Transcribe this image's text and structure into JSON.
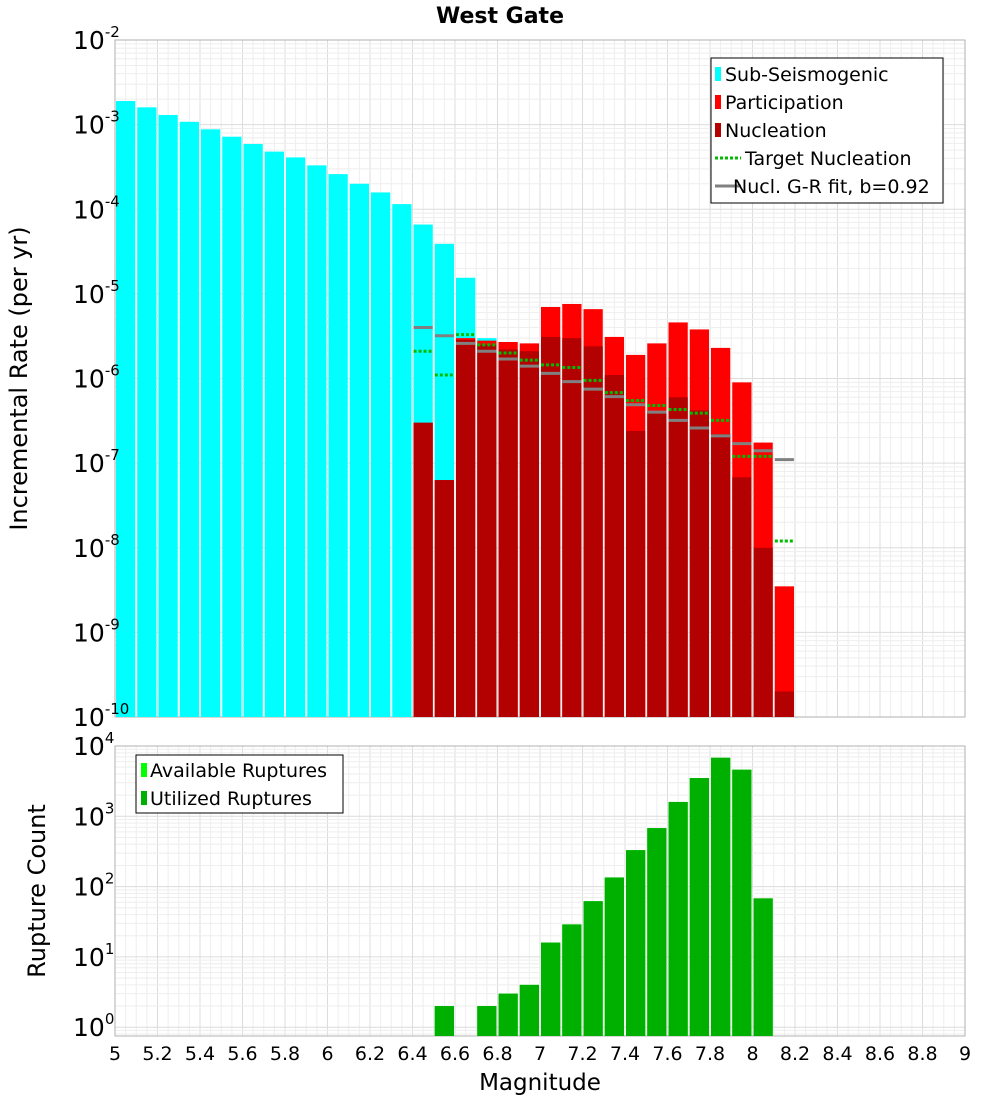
{
  "chart_data": [
    {
      "type": "bar",
      "title": "West Gate",
      "ylabel": "Incremental Rate (per yr)",
      "xlim": [
        5,
        9
      ],
      "ylim": [
        1e-10,
        0.01
      ],
      "yscale": "log",
      "grid": true,
      "legend_position": "top-right",
      "legend": [
        {
          "label": "Sub-Seismogenic",
          "color": "#00ffff",
          "style": "bar"
        },
        {
          "label": "Participation",
          "color": "#ff0000",
          "style": "bar"
        },
        {
          "label": "Nucleation",
          "color": "#b30000",
          "style": "bar"
        },
        {
          "label": "Target Nucleation",
          "color": "#00bb00",
          "style": "dotted-line"
        },
        {
          "label": "Nucl. G-R fit, b=0.92",
          "color": "#808080",
          "style": "line"
        }
      ],
      "bar_width": 0.1,
      "series": [
        {
          "name": "Sub-Seismogenic",
          "color": "#00ffff",
          "x": [
            5.05,
            5.15,
            5.25,
            5.35,
            5.45,
            5.55,
            5.65,
            5.75,
            5.85,
            5.95,
            6.05,
            6.15,
            6.25,
            6.35,
            6.45,
            6.55,
            6.65,
            6.75
          ],
          "values": [
            0.0019,
            0.0016,
            0.0013,
            0.00108,
            0.00088,
            0.00072,
            0.00059,
            0.00048,
            0.00041,
            0.00033,
            0.00026,
            0.0002,
            0.000158,
            0.000115,
            6.6e-05,
            3.9e-05,
            1.55e-05,
            3e-06
          ]
        },
        {
          "name": "Participation",
          "color": "#ff0000",
          "x": [
            6.45,
            6.55,
            6.65,
            6.75,
            6.85,
            6.95,
            7.05,
            7.15,
            7.25,
            7.35,
            7.45,
            7.55,
            7.65,
            7.75,
            7.85,
            7.95,
            8.05,
            8.15
          ],
          "values": [
            3e-07,
            6.3e-08,
            3e-06,
            2.8e-06,
            2.7e-06,
            2.6e-06,
            7e-06,
            7.6e-06,
            6.6e-06,
            3.1e-06,
            1.9e-06,
            2.6e-06,
            4.6e-06,
            3.8e-06,
            2.3e-06,
            9e-07,
            1.75e-07,
            3.5e-09
          ]
        },
        {
          "name": "Nucleation",
          "color": "#b30000",
          "x": [
            6.45,
            6.55,
            6.65,
            6.75,
            6.85,
            6.95,
            7.05,
            7.15,
            7.25,
            7.35,
            7.45,
            7.55,
            7.65,
            7.75,
            7.85,
            7.95,
            8.05,
            8.15
          ],
          "values": [
            3e-07,
            6.3e-08,
            2.85e-06,
            2.5e-06,
            2.2e-06,
            2.1e-06,
            3.1e-06,
            3e-06,
            2.4e-06,
            1.1e-06,
            2.4e-07,
            4.1e-07,
            6e-07,
            4.2e-07,
            2.2e-07,
            6.8e-08,
            1e-08,
            2e-10
          ]
        },
        {
          "name": "Target Nucleation",
          "color": "#00bb00",
          "style": "dotted",
          "x": [
            6.45,
            6.55,
            6.65,
            6.75,
            6.85,
            6.95,
            7.05,
            7.15,
            7.25,
            7.35,
            7.45,
            7.55,
            7.65,
            7.75,
            7.85,
            7.95,
            8.05,
            8.15
          ],
          "values": [
            2.1e-06,
            1.1e-06,
            3.3e-06,
            2.5e-06,
            2e-06,
            1.65e-06,
            1.45e-06,
            1.35e-06,
            9.5e-07,
            6.8e-07,
            5.5e-07,
            4.8e-07,
            4.3e-07,
            3.9e-07,
            3.2e-07,
            1.2e-07,
            1.2e-07,
            1.2e-08
          ]
        },
        {
          "name": "Nucl. G-R fit, b=0.92",
          "color": "#808080",
          "style": "solid",
          "x": [
            6.45,
            6.55,
            6.65,
            6.75,
            6.85,
            6.95,
            7.05,
            7.15,
            7.25,
            7.35,
            7.45,
            7.55,
            7.65,
            7.75,
            7.85,
            7.95,
            8.05,
            8.15
          ],
          "values": [
            4e-06,
            3.2e-06,
            2.6e-06,
            2.1e-06,
            1.7e-06,
            1.4e-06,
            1.15e-06,
            9.2e-07,
            7.5e-07,
            6.1e-07,
            4.9e-07,
            4e-07,
            3.2e-07,
            2.6e-07,
            2.1e-07,
            1.7e-07,
            1.4e-07,
            1.1e-07
          ]
        }
      ]
    },
    {
      "type": "bar",
      "xlabel": "Magnitude",
      "ylabel": "Rupture Count",
      "xlim": [
        5,
        9
      ],
      "ylim": [
        0.75,
        10000
      ],
      "yscale": "log",
      "grid": true,
      "legend_position": "top-left",
      "legend": [
        {
          "label": "Available Ruptures",
          "color": "#00ff00",
          "style": "bar"
        },
        {
          "label": "Utilized Ruptures",
          "color": "#00b000",
          "style": "bar"
        }
      ],
      "bar_width": 0.1,
      "series": [
        {
          "name": "Available Ruptures",
          "color": "#00ff00",
          "x": [
            6.55,
            6.75,
            6.85,
            6.95,
            7.05,
            7.15,
            7.25,
            7.35,
            7.45,
            7.55,
            7.65,
            7.75,
            7.85,
            7.95,
            8.05
          ],
          "values": [
            2,
            2,
            3,
            4,
            16,
            29,
            62,
            135,
            330,
            680,
            1600,
            3500,
            6800,
            4600,
            68
          ]
        },
        {
          "name": "Utilized Ruptures",
          "color": "#00b000",
          "x": [
            6.55,
            6.75,
            6.85,
            6.95,
            7.05,
            7.15,
            7.25,
            7.35,
            7.45,
            7.55,
            7.65,
            7.75,
            7.85,
            7.95,
            8.05
          ],
          "values": [
            2,
            2,
            3,
            4,
            16,
            29,
            62,
            135,
            330,
            680,
            1600,
            3500,
            6800,
            4600,
            68
          ]
        }
      ],
      "xticks": [
        "5",
        "5.2",
        "5.4",
        "5.6",
        "5.8",
        "6",
        "6.2",
        "6.4",
        "6.6",
        "6.8",
        "7",
        "7.2",
        "7.4",
        "7.6",
        "7.8",
        "8",
        "8.2",
        "8.4",
        "8.6",
        "8.8",
        "9"
      ]
    }
  ]
}
